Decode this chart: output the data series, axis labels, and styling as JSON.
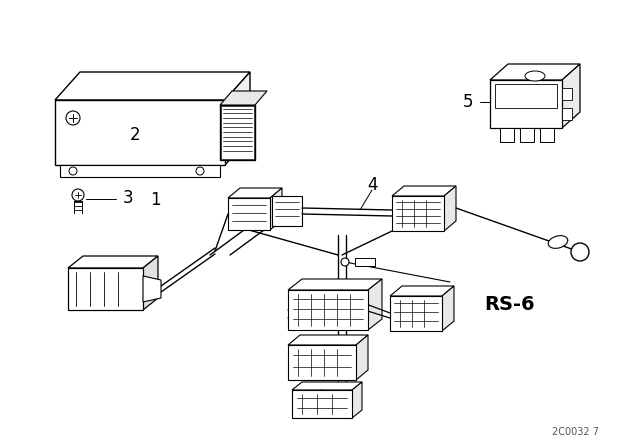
{
  "background_color": "#ffffff",
  "line_color": "#000000",
  "watermark": "2C0032 7",
  "rs_label": "RS-6",
  "fig_width": 6.4,
  "fig_height": 4.48,
  "dpi": 100
}
